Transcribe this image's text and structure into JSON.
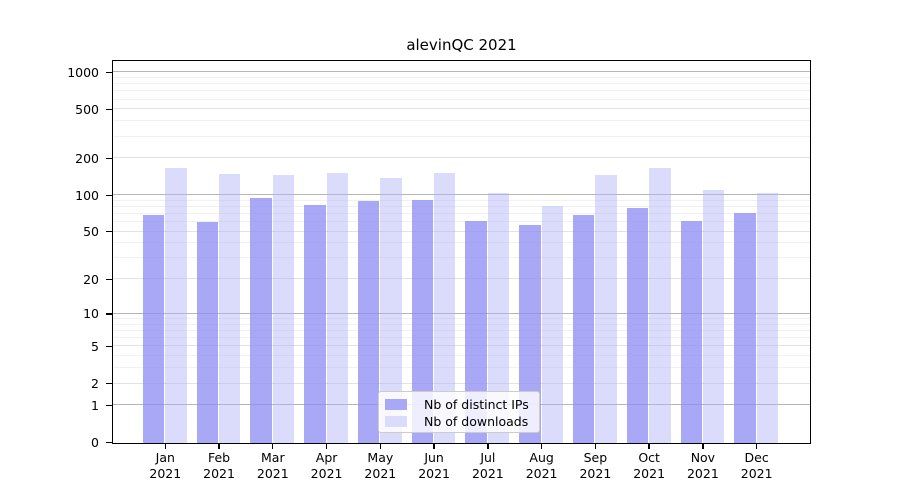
{
  "figure": {
    "title": "alevinQC 2021"
  },
  "chart_data": {
    "type": "bar",
    "title": "alevinQC 2021",
    "xlabel": "",
    "ylabel": "",
    "yscale": "log1p",
    "ylim": [
      0,
      1250
    ],
    "grid": true,
    "legend_position": "lower center",
    "yticks": [
      0,
      1,
      2,
      5,
      10,
      20,
      50,
      100,
      200,
      500,
      1000
    ],
    "minor_grid_values": [
      3,
      4,
      6,
      7,
      8,
      9,
      30,
      40,
      60,
      70,
      80,
      90,
      300,
      400,
      600,
      700,
      800,
      900
    ],
    "categories": [
      "Jan 2021",
      "Feb 2021",
      "Mar 2021",
      "Apr 2021",
      "May 2021",
      "Jun 2021",
      "Jul 2021",
      "Aug 2021",
      "Sep 2021",
      "Oct 2021",
      "Nov 2021",
      "Dec 2021"
    ],
    "series": [
      {
        "name": "Nb of distinct IPs",
        "color": "#a8a8f7",
        "fill": "rgba(139,139,244,0.75)",
        "values": [
          70,
          61,
          96,
          84,
          90,
          92,
          62,
          57,
          70,
          80,
          62,
          72
        ]
      },
      {
        "name": "Nb of downloads",
        "color": "#dbdbfb",
        "fill": "rgba(176,176,247,0.45)",
        "values": [
          167,
          151,
          147,
          152,
          140,
          152,
          105,
          83,
          148,
          169,
          111,
          105
        ]
      }
    ],
    "grid_colors": {
      "major": "#b6b6b6",
      "tick": "#e2e2e2",
      "minor": "#f1f1f1"
    },
    "spine_color": "#000000"
  }
}
